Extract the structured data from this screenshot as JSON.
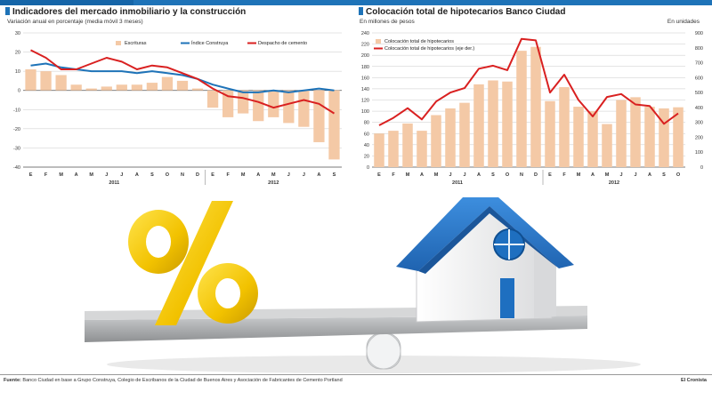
{
  "chart_data": [
    {
      "type": "bar",
      "title": "Indicadores del mercado inmobiliario y la construcción",
      "subtitle": "Variación anual en porcentaje (media móvil 3 meses)",
      "categories": [
        "E",
        "F",
        "M",
        "A",
        "M",
        "J",
        "J",
        "A",
        "S",
        "O",
        "N",
        "D",
        "E",
        "F",
        "M",
        "A",
        "M",
        "J",
        "J",
        "A",
        "S"
      ],
      "year_labels": [
        {
          "label": "2011",
          "start": 0,
          "end": 11
        },
        {
          "label": "2012",
          "start": 12,
          "end": 20
        }
      ],
      "ylim": [
        -40,
        30
      ],
      "yticks": [
        30,
        20,
        10,
        0,
        -10,
        -20,
        -30,
        -40
      ],
      "legend_position": "top",
      "series": [
        {
          "name": "Escrituras",
          "kind": "bar",
          "color": "#f4c9a6",
          "values": [
            11,
            10,
            8,
            3,
            1,
            2,
            3,
            3,
            4,
            7,
            5,
            1,
            -9,
            -14,
            -12,
            -16,
            -14,
            -17,
            -19,
            -27,
            -36
          ]
        },
        {
          "name": "Índice Construya",
          "kind": "line",
          "color": "#1e73b8",
          "values": [
            13,
            14,
            12,
            11,
            10,
            10,
            10,
            9,
            10,
            9,
            8,
            6,
            3,
            1,
            -1,
            -1,
            0,
            -1,
            0,
            1,
            0
          ]
        },
        {
          "name": "Despacho de cemento",
          "kind": "line",
          "color": "#d92020",
          "values": [
            21,
            17,
            11,
            11,
            14,
            17,
            15,
            11,
            13,
            12,
            9,
            6,
            1,
            -3,
            -4,
            -6,
            -9,
            -7,
            -5,
            -7,
            -12
          ]
        }
      ]
    },
    {
      "type": "bar",
      "title": "Colocación total de hipotecarios Banco Ciudad",
      "ylabel_left": "En millones de pesos",
      "ylabel_right": "En unidades",
      "categories": [
        "E",
        "F",
        "M",
        "A",
        "M",
        "J",
        "J",
        "A",
        "S",
        "O",
        "N",
        "D",
        "E",
        "F",
        "M",
        "A",
        "M",
        "J",
        "J",
        "A",
        "S",
        "O"
      ],
      "year_labels": [
        {
          "label": "2011",
          "start": 0,
          "end": 11
        },
        {
          "label": "2012",
          "start": 12,
          "end": 21
        }
      ],
      "ylim_left": [
        0,
        240
      ],
      "yticks_left": [
        240,
        220,
        200,
        180,
        160,
        140,
        120,
        100,
        80,
        60,
        40,
        20,
        0
      ],
      "ylim_right": [
        0,
        900
      ],
      "yticks_right": [
        900,
        800,
        700,
        600,
        500,
        400,
        300,
        200,
        100,
        0
      ],
      "legend_position": "top-left",
      "series": [
        {
          "name": "Colocación total de hipotecarios",
          "kind": "bar",
          "axis": "left",
          "color": "#f4c9a6",
          "values": [
            60,
            65,
            78,
            65,
            93,
            105,
            115,
            148,
            155,
            153,
            208,
            215,
            118,
            143,
            108,
            100,
            77,
            120,
            125,
            108,
            105,
            107
          ]
        },
        {
          "name": "Colocación total de hipotecarios (eje der.)",
          "kind": "line",
          "axis": "right",
          "color": "#d92020",
          "values": [
            280,
            330,
            395,
            320,
            440,
            500,
            530,
            660,
            680,
            650,
            860,
            850,
            500,
            620,
            450,
            340,
            470,
            490,
            420,
            410,
            290,
            360
          ]
        }
      ]
    }
  ],
  "footer": {
    "source_label": "Fuente:",
    "source_text": "Banco Ciudad en base a Grupo Construya, Colegio de Escribanos de la Ciudad de Buenos Aires y Asociación de Fabricantes de Cemento Portland",
    "credit": "El Cronista"
  },
  "illustration": {
    "percent_symbol": "%",
    "colors": {
      "percent": "#f2c200",
      "roof": "#2a78c8",
      "walls": "#f4f4f4",
      "door": "#1e6fc0",
      "seesaw": "#8f9193"
    }
  }
}
